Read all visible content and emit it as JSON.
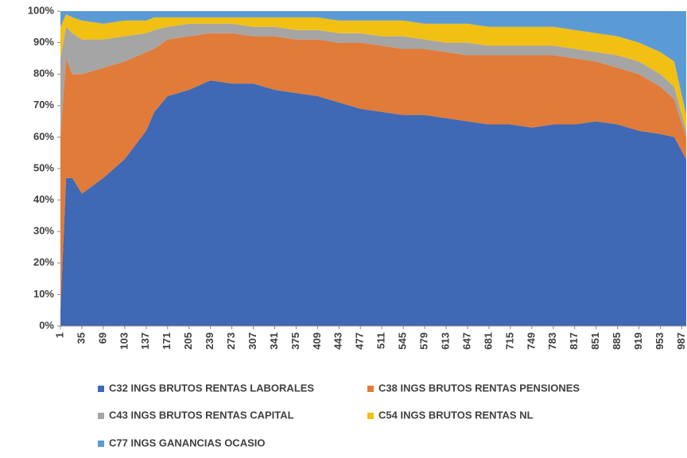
{
  "chart_data": {
    "type": "stacked_area_100",
    "x": [
      1,
      10,
      20,
      35,
      69,
      103,
      137,
      150,
      171,
      205,
      239,
      273,
      307,
      341,
      375,
      409,
      443,
      477,
      511,
      545,
      579,
      613,
      647,
      681,
      715,
      749,
      783,
      817,
      851,
      885,
      919,
      953,
      975,
      994
    ],
    "series": [
      {
        "name": "C32 INGS BRUTOS RENTAS LABORALES",
        "color": "#3f68b5",
        "values": [
          5,
          47,
          47,
          42,
          47,
          53,
          62,
          68,
          73,
          75,
          78,
          77,
          77,
          75,
          74,
          73,
          71,
          69,
          68,
          67,
          67,
          66,
          65,
          64,
          64,
          63,
          64,
          64,
          65,
          64,
          62,
          61,
          60,
          53
        ]
      },
      {
        "name": "C38 INGS BRUTOS RENTAS PENSIONES",
        "color": "#e07b39",
        "values": [
          55,
          38,
          33,
          38,
          35,
          31,
          25,
          20,
          18,
          17,
          15,
          16,
          15,
          17,
          17,
          18,
          19,
          21,
          21,
          21,
          21,
          21,
          21,
          22,
          22,
          23,
          22,
          21,
          19,
          18,
          18,
          15,
          12,
          7
        ]
      },
      {
        "name": "C43 INGS BRUTOS RENTAS CAPITAL",
        "color": "#a5a5a5",
        "values": [
          25,
          10,
          13,
          11,
          9,
          8,
          6,
          6,
          4,
          4,
          3,
          3,
          3,
          3,
          3,
          3,
          3,
          3,
          3,
          4,
          3,
          3,
          4,
          3,
          3,
          3,
          3,
          3,
          3,
          4,
          4,
          4,
          4,
          2
        ]
      },
      {
        "name": "C54 INGS BRUTOS RENTAS NL",
        "color": "#f2c012",
        "values": [
          10,
          4,
          5,
          6,
          5,
          5,
          4,
          4,
          3,
          2,
          2,
          2,
          3,
          3,
          4,
          4,
          4,
          4,
          5,
          5,
          5,
          6,
          6,
          6,
          6,
          6,
          6,
          6,
          6,
          6,
          6,
          7,
          8,
          5
        ]
      },
      {
        "name": "C77 INGS GANANCIAS OCASIO",
        "color": "#5b9bd5",
        "values": [
          5,
          1,
          2,
          3,
          4,
          3,
          3,
          2,
          2,
          2,
          2,
          2,
          2,
          2,
          2,
          2,
          3,
          3,
          3,
          3,
          4,
          4,
          4,
          5,
          5,
          5,
          5,
          6,
          7,
          8,
          10,
          13,
          16,
          33
        ]
      }
    ],
    "xlim": [
      1,
      994
    ],
    "xticks": [
      1,
      35,
      69,
      103,
      137,
      171,
      205,
      239,
      273,
      307,
      341,
      375,
      409,
      443,
      477,
      511,
      545,
      579,
      613,
      647,
      681,
      715,
      749,
      783,
      817,
      851,
      885,
      919,
      953,
      987
    ],
    "ylim": [
      0,
      100
    ],
    "yticks": [
      {
        "value": 0,
        "label": "0%"
      },
      {
        "value": 10,
        "label": "10%"
      },
      {
        "value": 20,
        "label": "20%"
      },
      {
        "value": 30,
        "label": "30%"
      },
      {
        "value": 40,
        "label": "40%"
      },
      {
        "value": 50,
        "label": "50%"
      },
      {
        "value": 60,
        "label": "60%"
      },
      {
        "value": 70,
        "label": "70%"
      },
      {
        "value": 80,
        "label": "80%"
      },
      {
        "value": 90,
        "label": "90%"
      },
      {
        "value": 100,
        "label": "100%"
      }
    ],
    "legend": "bottom"
  }
}
